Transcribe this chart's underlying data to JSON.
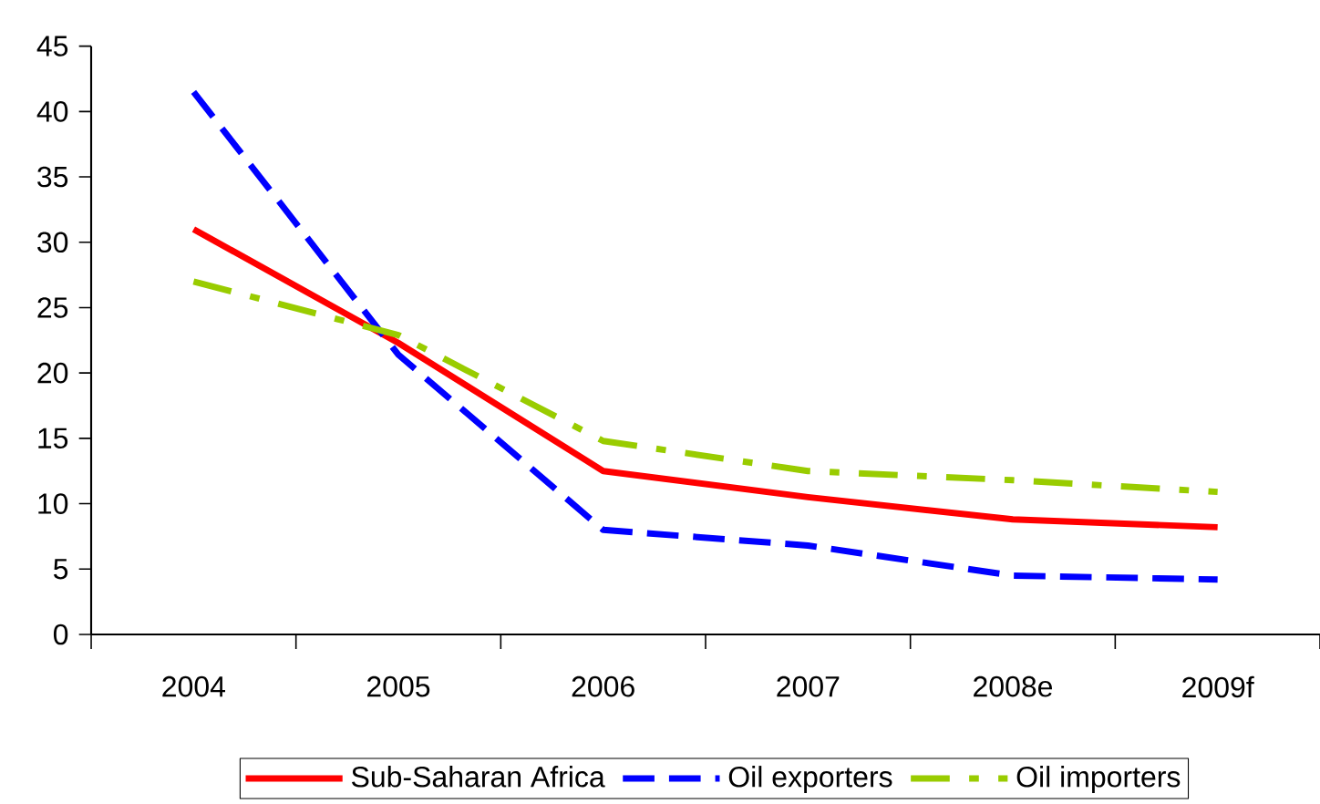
{
  "chart_data": {
    "type": "line",
    "categories": [
      "2004",
      "2005",
      "2006",
      "2007",
      "2008e",
      "2009f"
    ],
    "series": [
      {
        "name": "Sub-Saharan Africa",
        "color": "#ff0000",
        "line_style": "solid",
        "values": [
          31,
          22.3,
          12.5,
          10.5,
          8.8,
          8.2
        ]
      },
      {
        "name": "Oil exporters",
        "color": "#0000ff",
        "line_style": "dashed",
        "values": [
          41.5,
          21.4,
          8,
          6.8,
          4.5,
          4.2
        ]
      },
      {
        "name": "Oil importers",
        "color": "#99cc00",
        "line_style": "dashdot",
        "values": [
          27,
          22.9,
          14.8,
          12.5,
          11.8,
          10.9
        ]
      }
    ],
    "ylim": [
      0,
      45
    ],
    "yticks": [
      0,
      5,
      10,
      15,
      20,
      25,
      30,
      35,
      40,
      45
    ],
    "grid": false,
    "legend": "bottom",
    "marker": "none"
  }
}
